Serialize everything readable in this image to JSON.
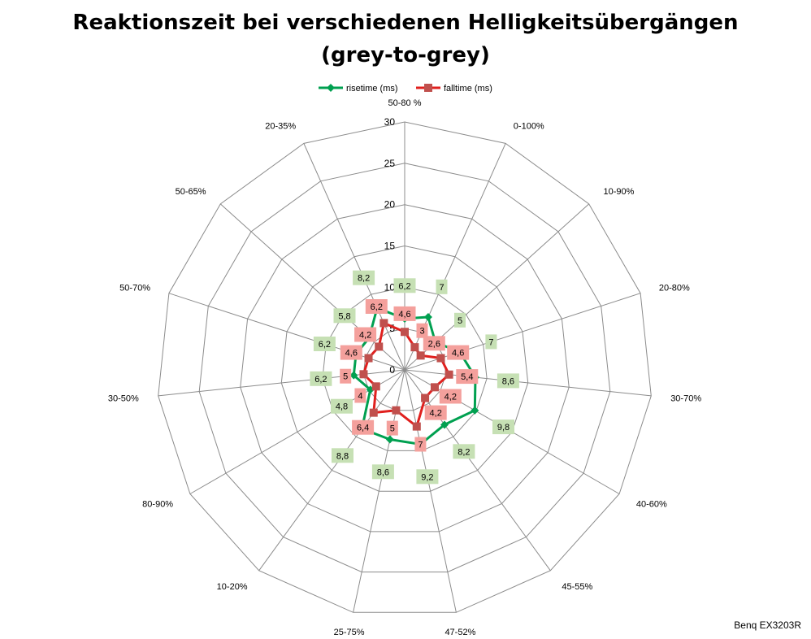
{
  "footer": "Benq EX3203R",
  "chart_data": {
    "type": "radar",
    "title_lines": [
      "Reaktionszeit bei verschiedenen Helligkeitsübergängen",
      "(grey-to-grey)"
    ],
    "categories": [
      "50-80 %",
      "0-100%",
      "10-90%",
      "20-80%",
      "30-70%",
      "40-60%",
      "45-55%",
      "47-52%",
      "25-75%",
      "10-20%",
      "80-90%",
      "30-50%",
      "50-70%",
      "50-65%",
      "20-35%"
    ],
    "rmax": 30,
    "ticks": [
      0,
      5,
      10,
      15,
      20,
      25,
      30
    ],
    "grid": true,
    "legend_position": "top",
    "series": [
      {
        "name": "risetime (ms)",
        "color": "#00a050",
        "label_bg": "#c6e0b4",
        "marker": "diamond",
        "values": [
          6.2,
          7,
          5,
          7,
          8.6,
          9.8,
          8.2,
          9.2,
          8.6,
          8.8,
          4.8,
          6.2,
          6.2,
          5.8,
          8.2
        ],
        "labels": [
          "6,2",
          "7",
          "5",
          "7",
          "8,6",
          "9,8",
          "8,2",
          "9,2",
          "8,6",
          "8,8",
          "4,8",
          "6,2",
          "6,2",
          "5,8",
          "8,2"
        ]
      },
      {
        "name": "falltime (ms)",
        "color": "#e0201e",
        "label_bg": "#f4a09c",
        "marker": "square",
        "values": [
          4.6,
          3,
          2.6,
          4.6,
          5.4,
          4.2,
          4.2,
          7,
          5,
          6.4,
          4,
          5,
          4.6,
          4.2,
          6.2
        ],
        "labels": [
          "4,6",
          "3",
          "2,6",
          "4,6",
          "5,4",
          "4,2",
          "4,2",
          "7",
          "5",
          "6,4",
          "4",
          "5",
          "4,6",
          "4,2",
          "6,2"
        ]
      }
    ]
  }
}
